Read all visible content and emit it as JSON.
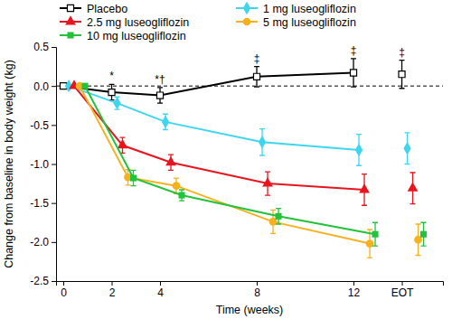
{
  "chart_data": {
    "type": "line",
    "x_label": "Time (weeks)",
    "y_label": "Change from baseline in body weight (kg)",
    "x": [
      0,
      2,
      4,
      8,
      12,
      14
    ],
    "xlim": [
      -0.3,
      15.7
    ],
    "xticks": [
      0,
      2,
      4,
      8,
      12,
      {
        "value": 14,
        "label": "EOT"
      }
    ],
    "ylim": [
      -2.5,
      0.5
    ],
    "yticks": [
      0.5,
      {
        "value": 0,
        "label": "0.0"
      },
      -0.5,
      {
        "value": -1,
        "label": "-1.0"
      },
      -1.5,
      {
        "value": -2,
        "label": "-2.0"
      },
      -2.5
    ],
    "baseline": 0,
    "legend": "upper left",
    "series": [
      {
        "name": "Placebo",
        "color": "#000000",
        "marker": "open-square",
        "values": [
          0,
          -0.08,
          -0.12,
          0.12,
          0.17,
          0.15
        ],
        "error": [
          0,
          0.1,
          0.1,
          0.13,
          0.18,
          0.18
        ]
      },
      {
        "name": "1 mg luseogliflozin",
        "color": "#3dd6ee",
        "marker": "diamond",
        "values": [
          0,
          -0.22,
          -0.46,
          -0.72,
          -0.82,
          -0.8
        ],
        "error": [
          0,
          0.08,
          0.1,
          0.17,
          0.2,
          0.2
        ]
      },
      {
        "name": "2.5 mg luseogliflozin",
        "color": "#e8141e",
        "marker": "triangle",
        "values": [
          0,
          -0.76,
          -0.98,
          -1.25,
          -1.33,
          -1.31
        ],
        "error": [
          0,
          0.1,
          0.1,
          0.15,
          0.2,
          0.2
        ]
      },
      {
        "name": "5 mg luseogliflozin",
        "color": "#f5b21e",
        "marker": "circle",
        "values": [
          0,
          -1.17,
          -1.28,
          -1.74,
          -2.02,
          -1.97
        ],
        "error": [
          0,
          0.1,
          0.1,
          0.15,
          0.18,
          0.2
        ]
      },
      {
        "name": "10 mg luseogliflozin",
        "color": "#22c23a",
        "marker": "square",
        "values": [
          0,
          -1.18,
          -1.4,
          -1.67,
          -1.9,
          -1.9
        ],
        "error": [
          0,
          0.1,
          0.07,
          0.1,
          0.15,
          0.15
        ]
      }
    ],
    "annotations": [
      {
        "text": "*",
        "x": 2
      },
      {
        "text": "*†",
        "x": 4
      },
      {
        "text": "‡",
        "x": 8
      },
      {
        "text": "‡",
        "x": 12
      },
      {
        "text": "‡",
        "x": 14
      }
    ]
  }
}
